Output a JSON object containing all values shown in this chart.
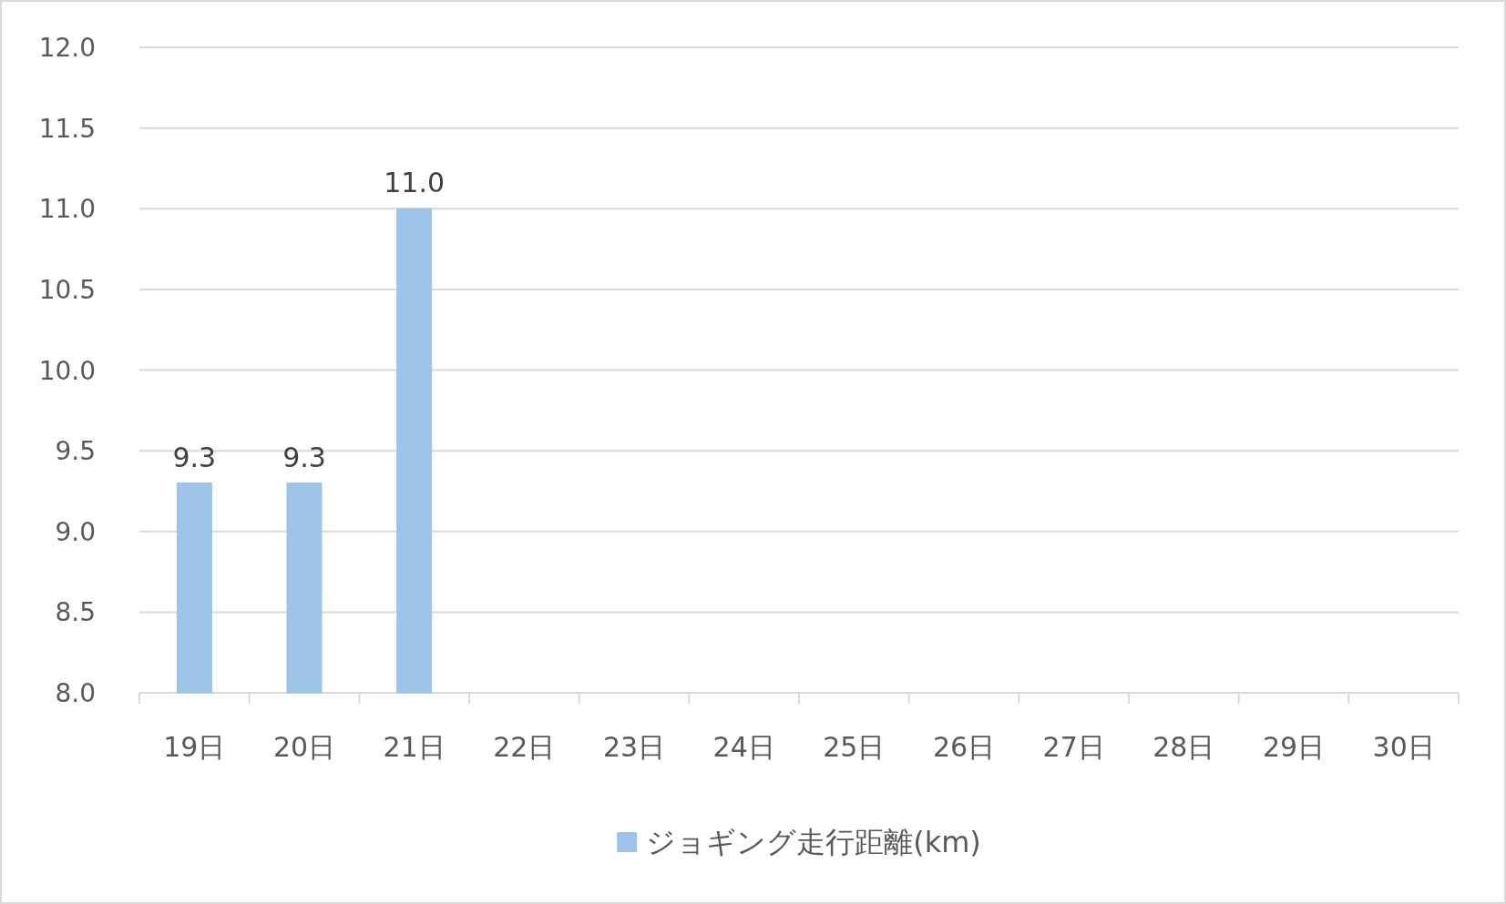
{
  "chart_data": {
    "type": "bar",
    "categories": [
      "19日",
      "20日",
      "21日",
      "22日",
      "23日",
      "24日",
      "25日",
      "26日",
      "27日",
      "28日",
      "29日",
      "30日"
    ],
    "series": [
      {
        "name": "ジョギング走行距離(km)",
        "color": "#9dc3e6",
        "values": [
          9.3,
          9.3,
          11.0,
          8.0,
          8.0,
          8.0,
          8.0,
          8.0,
          8.0,
          null,
          null,
          null
        ],
        "value_labels": [
          "9.3",
          "9.3",
          "11.0",
          null,
          null,
          null,
          null,
          null,
          null,
          null,
          null,
          null
        ]
      }
    ],
    "ylim": [
      8,
      12
    ],
    "yticks": [
      {
        "value": 8,
        "label": "8.0"
      },
      {
        "value": 8.5,
        "label": "8.5"
      },
      {
        "value": 9,
        "label": "9.0"
      },
      {
        "value": 9.5,
        "label": "9.5"
      },
      {
        "value": 10,
        "label": "10.0"
      },
      {
        "value": 10.5,
        "label": "10.5"
      },
      {
        "value": 11,
        "label": "11.0"
      },
      {
        "value": 11.5,
        "label": "11.5"
      },
      {
        "value": 12,
        "label": "12.0"
      }
    ],
    "grid": "y",
    "legend": "bottom"
  }
}
